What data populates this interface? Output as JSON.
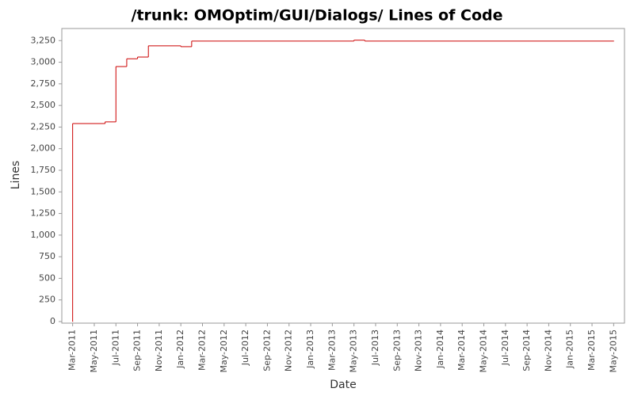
{
  "chart_data": {
    "type": "step-line",
    "title": "/trunk: OMOptim/GUI/Dialogs/ Lines of Code",
    "x_label": "Date",
    "y_label": "Lines",
    "x": [
      "2011-03",
      "2011-03",
      "2011-06",
      "2011-07",
      "2011-08",
      "2011-09",
      "2011-10",
      "2012-01",
      "2012-02",
      "2013-05",
      "2013-06",
      "2015-05"
    ],
    "series": [
      {
        "color": "#cc0000",
        "values": [
          0,
          2290,
          2310,
          2950,
          3040,
          3060,
          3190,
          3180,
          3245,
          3255,
          3245,
          3245
        ]
      }
    ],
    "xlim": [
      "2011-02",
      "2015-06"
    ],
    "xticks": [
      {
        "value": "2011-03",
        "label": "Mar-2011"
      },
      {
        "value": "2011-05",
        "label": "May-2011"
      },
      {
        "value": "2011-07",
        "label": "Jul-2011"
      },
      {
        "value": "2011-09",
        "label": "Sep-2011"
      },
      {
        "value": "2011-11",
        "label": "Nov-2011"
      },
      {
        "value": "2012-01",
        "label": "Jan-2012"
      },
      {
        "value": "2012-03",
        "label": "Mar-2012"
      },
      {
        "value": "2012-05",
        "label": "May-2012"
      },
      {
        "value": "2012-07",
        "label": "Jul-2012"
      },
      {
        "value": "2012-09",
        "label": "Sep-2012"
      },
      {
        "value": "2012-11",
        "label": "Nov-2012"
      },
      {
        "value": "2013-01",
        "label": "Jan-2013"
      },
      {
        "value": "2013-03",
        "label": "Mar-2013"
      },
      {
        "value": "2013-05",
        "label": "May-2013"
      },
      {
        "value": "2013-07",
        "label": "Jul-2013"
      },
      {
        "value": "2013-09",
        "label": "Sep-2013"
      },
      {
        "value": "2013-11",
        "label": "Nov-2013"
      },
      {
        "value": "2014-01",
        "label": "Jan-2014"
      },
      {
        "value": "2014-03",
        "label": "Mar-2014"
      },
      {
        "value": "2014-05",
        "label": "May-2014"
      },
      {
        "value": "2014-07",
        "label": "Jul-2014"
      },
      {
        "value": "2014-09",
        "label": "Sep-2014"
      },
      {
        "value": "2014-11",
        "label": "Nov-2014"
      },
      {
        "value": "2015-01",
        "label": "Jan-2015"
      },
      {
        "value": "2015-03",
        "label": "Mar-2015"
      },
      {
        "value": "2015-05",
        "label": "May-2015"
      }
    ],
    "ylim": [
      0,
      3390
    ],
    "yticks": [
      0,
      250,
      500,
      750,
      {
        "value": 1000,
        "label": "1,000"
      },
      {
        "value": 1250,
        "label": "1,250"
      },
      {
        "value": 1500,
        "label": "1,500"
      },
      {
        "value": 1750,
        "label": "1,750"
      },
      {
        "value": 2000,
        "label": "2,000"
      },
      {
        "value": 2250,
        "label": "2,250"
      },
      {
        "value": 2500,
        "label": "2,500"
      },
      {
        "value": 2750,
        "label": "2,750"
      },
      {
        "value": 3000,
        "label": "3,000"
      },
      {
        "value": 3250,
        "label": "3,250"
      }
    ],
    "grid": false
  }
}
